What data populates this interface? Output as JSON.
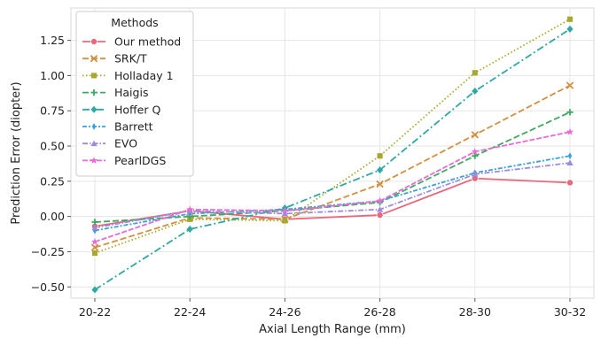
{
  "chart_data": {
    "type": "line",
    "xlabel": "Axial Length Range (mm)",
    "ylabel": "Prediction Error (diopter)",
    "categories": [
      "20-22",
      "22-24",
      "24-26",
      "26-28",
      "28-30",
      "30-32"
    ],
    "y_ticks": [
      "−0.50",
      "−0.25",
      "0.00",
      "0.25",
      "0.50",
      "0.75",
      "1.00",
      "1.25"
    ],
    "ylim": [
      -0.58,
      1.48
    ],
    "grid": true,
    "legend": {
      "title": "Methods",
      "position": "top-left"
    },
    "series": [
      {
        "name": "Our method",
        "color": "#e8697d",
        "dash": "solid",
        "marker": "circle",
        "values": [
          -0.07,
          0.04,
          -0.02,
          0.01,
          0.27,
          0.24
        ]
      },
      {
        "name": "SRK/T",
        "color": "#d39040",
        "dash": "dashed",
        "marker": "x",
        "values": [
          -0.22,
          -0.01,
          -0.02,
          0.23,
          0.58,
          0.93
        ]
      },
      {
        "name": "Holladay 1",
        "color": "#a6a82f",
        "dash": "dotted",
        "marker": "square",
        "values": [
          -0.26,
          -0.02,
          -0.03,
          0.43,
          1.02,
          1.4
        ]
      },
      {
        "name": "Haigis",
        "color": "#3daa5e",
        "dash": "dashed",
        "marker": "plus",
        "values": [
          -0.04,
          0.0,
          0.04,
          0.1,
          0.43,
          0.74
        ]
      },
      {
        "name": "Hoffer Q",
        "color": "#2ea8a0",
        "dash": "dashdot",
        "marker": "diamond",
        "values": [
          -0.52,
          -0.09,
          0.06,
          0.33,
          0.89,
          1.33
        ]
      },
      {
        "name": "Barrett",
        "color": "#3ba0d6",
        "dash": "dashdot2",
        "marker": "thin_diamond",
        "values": [
          -0.1,
          0.02,
          0.05,
          0.11,
          0.31,
          0.43
        ]
      },
      {
        "name": "EVO",
        "color": "#9d8ae0",
        "dash": "dashdot3",
        "marker": "triangle",
        "values": [
          -0.08,
          0.04,
          0.02,
          0.05,
          0.3,
          0.38
        ]
      },
      {
        "name": "PearlDGS",
        "color": "#ea6ad8",
        "dash": "dashed2",
        "marker": "star",
        "values": [
          -0.18,
          0.05,
          0.04,
          0.11,
          0.46,
          0.6
        ]
      }
    ]
  }
}
